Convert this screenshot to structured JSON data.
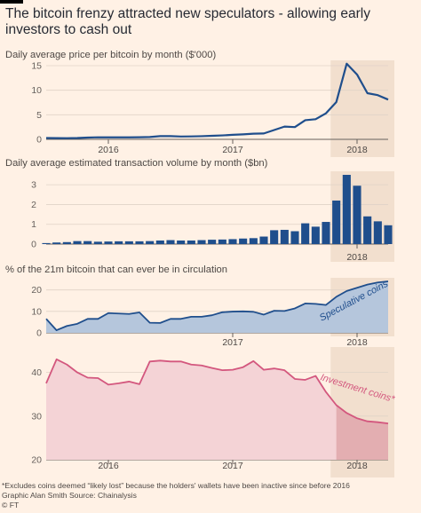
{
  "title": "The bitcoin frenzy attracted new speculators - allowing early investors to cash out",
  "footnote": "*Excludes coins deemed “likely lost” because the holders' wallets have been inactive since before 2016",
  "credit": "Graphic Alan Smith  Source: Chainalysis",
  "copyright": "© FT",
  "colors": {
    "background": "#fff1e5",
    "highlight": "#f2dfce",
    "blue": "#1f4e8c",
    "blue_fill": "#b5c6dc",
    "pink": "#d3577e",
    "pink_fill": "#f4d3d6",
    "pink_fill_highlight": "#e3aeb1"
  },
  "chart_data": [
    {
      "type": "line",
      "title": "Daily average price per bitcoin by month ($'000)",
      "x": [
        "2015-07",
        "2015-08",
        "2015-09",
        "2015-10",
        "2015-11",
        "2015-12",
        "2016-01",
        "2016-02",
        "2016-03",
        "2016-04",
        "2016-05",
        "2016-06",
        "2016-07",
        "2016-08",
        "2016-09",
        "2016-10",
        "2016-11",
        "2016-12",
        "2017-01",
        "2017-02",
        "2017-03",
        "2017-04",
        "2017-05",
        "2017-06",
        "2017-07",
        "2017-08",
        "2017-09",
        "2017-10",
        "2017-11",
        "2017-12",
        "2018-01",
        "2018-02",
        "2018-03",
        "2018-04"
      ],
      "values": [
        0.28,
        0.25,
        0.24,
        0.27,
        0.36,
        0.42,
        0.41,
        0.4,
        0.41,
        0.43,
        0.47,
        0.65,
        0.66,
        0.58,
        0.6,
        0.64,
        0.72,
        0.8,
        0.92,
        1.02,
        1.15,
        1.2,
        1.9,
        2.6,
        2.5,
        3.9,
        4.1,
        5.3,
        7.6,
        15.4,
        13.2,
        9.4,
        9.0,
        8.1
      ],
      "ylim": [
        0,
        15
      ],
      "yticks": [
        0,
        5,
        10,
        15
      ],
      "xticks": [
        "2016",
        "2017",
        "2018"
      ],
      "highlight": [
        "2017-11",
        "2018-04"
      ]
    },
    {
      "type": "bar",
      "title": "Daily average estimated transaction volume by month ($bn)",
      "x": [
        "2015-07",
        "2015-08",
        "2015-09",
        "2015-10",
        "2015-11",
        "2015-12",
        "2016-01",
        "2016-02",
        "2016-03",
        "2016-04",
        "2016-05",
        "2016-06",
        "2016-07",
        "2016-08",
        "2016-09",
        "2016-10",
        "2016-11",
        "2016-12",
        "2017-01",
        "2017-02",
        "2017-03",
        "2017-04",
        "2017-05",
        "2017-06",
        "2017-07",
        "2017-08",
        "2017-09",
        "2017-10",
        "2017-11",
        "2017-12",
        "2018-01",
        "2018-02",
        "2018-03",
        "2018-04"
      ],
      "values": [
        0.05,
        0.08,
        0.1,
        0.15,
        0.15,
        0.12,
        0.13,
        0.14,
        0.14,
        0.14,
        0.15,
        0.18,
        0.2,
        0.18,
        0.18,
        0.2,
        0.22,
        0.23,
        0.25,
        0.28,
        0.3,
        0.38,
        0.7,
        0.72,
        0.65,
        1.05,
        0.88,
        1.12,
        2.2,
        3.5,
        2.95,
        1.4,
        1.15,
        0.95
      ],
      "ylim": [
        0,
        3.5
      ],
      "yticks": [
        0,
        1,
        2,
        3
      ],
      "xticks": [
        "2018"
      ],
      "highlight": [
        "2017-11",
        "2018-04"
      ]
    },
    {
      "type": "area",
      "title": "% of the 21m bitcoin that can ever be in circulation",
      "x": [
        "2015-07",
        "2015-08",
        "2015-09",
        "2015-10",
        "2015-11",
        "2015-12",
        "2016-01",
        "2016-02",
        "2016-03",
        "2016-04",
        "2016-05",
        "2016-06",
        "2016-07",
        "2016-08",
        "2016-09",
        "2016-10",
        "2016-11",
        "2016-12",
        "2017-01",
        "2017-02",
        "2017-03",
        "2017-04",
        "2017-05",
        "2017-06",
        "2017-07",
        "2017-08",
        "2017-09",
        "2017-10",
        "2017-11",
        "2017-12",
        "2018-01",
        "2018-02",
        "2018-03",
        "2018-04"
      ],
      "series": [
        {
          "name": "Speculative coins",
          "values": [
            6.5,
            1.2,
            3.2,
            4.2,
            6.5,
            6.5,
            9.2,
            9.0,
            8.8,
            9.5,
            4.7,
            4.6,
            6.5,
            6.5,
            7.5,
            7.5,
            8.2,
            9.6,
            9.9,
            10.0,
            9.8,
            8.5,
            10.3,
            10.2,
            11.4,
            13.7,
            13.5,
            13.0,
            16.8,
            19.5,
            21.0,
            22.5,
            23.5,
            24.0
          ]
        }
      ],
      "ylim": [
        0,
        24
      ],
      "yticks": [
        0,
        10,
        20
      ],
      "xticks": [
        "2017",
        "2018"
      ],
      "highlight": [
        "2017-11",
        "2018-04"
      ]
    },
    {
      "type": "area",
      "title": "",
      "x": [
        "2015-07",
        "2015-08",
        "2015-09",
        "2015-10",
        "2015-11",
        "2015-12",
        "2016-01",
        "2016-02",
        "2016-03",
        "2016-04",
        "2016-05",
        "2016-06",
        "2016-07",
        "2016-08",
        "2016-09",
        "2016-10",
        "2016-11",
        "2016-12",
        "2017-01",
        "2017-02",
        "2017-03",
        "2017-04",
        "2017-05",
        "2017-06",
        "2017-07",
        "2017-08",
        "2017-09",
        "2017-10",
        "2017-11",
        "2017-12",
        "2018-01",
        "2018-02",
        "2018-03",
        "2018-04"
      ],
      "series": [
        {
          "name": "Investment coins*",
          "values": [
            37.5,
            43.0,
            41.8,
            40.0,
            38.8,
            38.7,
            37.2,
            37.5,
            37.9,
            37.3,
            42.5,
            42.7,
            42.5,
            42.5,
            41.8,
            41.6,
            41.0,
            40.5,
            40.6,
            41.2,
            42.6,
            40.6,
            40.9,
            40.5,
            38.5,
            38.3,
            39.2,
            35.5,
            32.5,
            30.7,
            29.5,
            28.8,
            28.6,
            28.3
          ]
        }
      ],
      "ylim": [
        20,
        45
      ],
      "yticks": [
        20,
        30,
        40
      ],
      "xticks": [
        "2016",
        "2017",
        "2018"
      ],
      "highlight": [
        "2017-11",
        "2018-04"
      ]
    }
  ]
}
